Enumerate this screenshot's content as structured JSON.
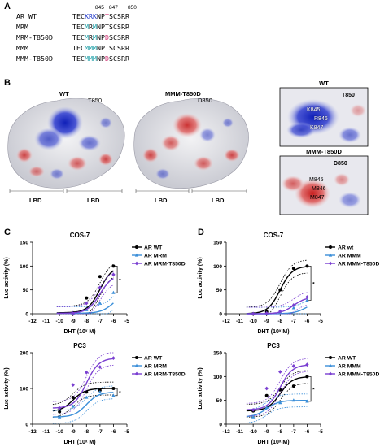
{
  "panels": {
    "A": "A",
    "B": "B",
    "C": "C",
    "D": "D"
  },
  "sequence": {
    "positions": [
      "845",
      "847",
      "850"
    ],
    "rows": [
      {
        "name": "AR WT",
        "pre": "TEC",
        "mid": [
          [
            "K",
            "blue"
          ],
          [
            "R",
            "blue"
          ],
          [
            "K",
            "blue"
          ]
        ],
        "np": "NP",
        "x": [
          "T",
          "pink"
        ],
        "post": "SCSRR"
      },
      {
        "name": "MRM",
        "pre": "TEC",
        "mid": [
          [
            "M",
            "cyan"
          ],
          [
            "R",
            "black"
          ],
          [
            "M",
            "cyan"
          ]
        ],
        "np": "NP",
        "x": [
          "T",
          "black"
        ],
        "post": "SCSRR"
      },
      {
        "name": "MRM-T850D",
        "pre": "TEC",
        "mid": [
          [
            "M",
            "cyan"
          ],
          [
            "R",
            "black"
          ],
          [
            "M",
            "cyan"
          ]
        ],
        "np": "NP",
        "x": [
          "D",
          "pink"
        ],
        "post": "SCSRR"
      },
      {
        "name": "MMM",
        "pre": "TEC",
        "mid": [
          [
            "M",
            "cyan"
          ],
          [
            "M",
            "cyan"
          ],
          [
            "M",
            "cyan"
          ]
        ],
        "np": "NP",
        "x": [
          "T",
          "black"
        ],
        "post": "SCSRR"
      },
      {
        "name": "MMM-T850D",
        "pre": "TEC",
        "mid": [
          [
            "M",
            "cyan"
          ],
          [
            "M",
            "cyan"
          ],
          [
            "M",
            "cyan"
          ]
        ],
        "np": "NP",
        "x": [
          "D",
          "pink"
        ],
        "post": "SCSRR"
      }
    ]
  },
  "structures": {
    "left": {
      "title": "WT",
      "site": "T850",
      "lbd_left": "LBD",
      "lbd_right": "LBD"
    },
    "right": {
      "title": "MMM-T850D",
      "site": "D850",
      "lbd_left": "LBD",
      "lbd_right": "LBD"
    },
    "zoom_top": {
      "title": "WT",
      "site": "T850",
      "res1": "K845",
      "res2": "R846",
      "res3": "K847"
    },
    "zoom_bottom": {
      "title": "MMM-T850D",
      "site": "D850",
      "res1": "M845",
      "res2": "M846",
      "res3": "M847"
    }
  },
  "colors": {
    "wt": "#000000",
    "mut1": "#3b8fd9",
    "mut2": "#7a3fd1",
    "surface_blue": "#2b35c8",
    "surface_red": "#d43a3a"
  },
  "chart_data": [
    {
      "id": "C-top",
      "type": "line",
      "title": "COS-7",
      "xlabel": "DHT (10ˣ M)",
      "ylabel": "Luc activity (%)",
      "xlim": [
        -12,
        -5
      ],
      "ylim": [
        0,
        150
      ],
      "xticks": [
        -12,
        -11,
        -10,
        -9,
        -8,
        -7,
        -6,
        -5
      ],
      "yticks": [
        0,
        50,
        100,
        150
      ],
      "significance": "*",
      "legend": [
        "AR WT",
        "AR MRM",
        "AR MRM-T850D"
      ],
      "series": [
        {
          "name": "AR WT",
          "x": [
            -9,
            -8,
            -7,
            -6
          ],
          "y": [
            2,
            33,
            78,
            100
          ]
        },
        {
          "name": "AR MRM",
          "x": [
            -9,
            -8,
            -7,
            -6
          ],
          "y": [
            1,
            8,
            22,
            44
          ]
        },
        {
          "name": "AR MRM-T850D",
          "x": [
            -9,
            -8,
            -7,
            -6
          ],
          "y": [
            1,
            22,
            55,
            82
          ]
        }
      ]
    },
    {
      "id": "D-top",
      "type": "line",
      "title": "COS-7",
      "xlabel": "DHT (10ˣ M)",
      "ylabel": "Luc activity (%)",
      "xlim": [
        -12,
        -5
      ],
      "ylim": [
        0,
        150
      ],
      "xticks": [
        -12,
        -11,
        -10,
        -9,
        -8,
        -7,
        -6,
        -5
      ],
      "yticks": [
        0,
        50,
        100,
        150
      ],
      "significance": "*",
      "legend": [
        "AR wt",
        "AR MMM",
        "AR MMM-T850D"
      ],
      "series": [
        {
          "name": "AR wt",
          "x": [
            -10,
            -9,
            -8,
            -7,
            -6
          ],
          "y": [
            0,
            4,
            50,
            95,
            100
          ]
        },
        {
          "name": "AR MMM",
          "x": [
            -10,
            -9,
            -8,
            -7,
            -6
          ],
          "y": [
            0,
            1,
            3,
            12,
            28
          ]
        },
        {
          "name": "AR MMM-T850D",
          "x": [
            -10,
            -9,
            -8,
            -7,
            -6
          ],
          "y": [
            0,
            1,
            5,
            18,
            35
          ]
        }
      ]
    },
    {
      "id": "C-bottom",
      "type": "line",
      "title": "PC3",
      "xlabel": "DHT (10ˣ M)",
      "ylabel": "Luc activity (%)",
      "xlim": [
        -12,
        -5
      ],
      "ylim": [
        0,
        200
      ],
      "xticks": [
        -12,
        -11,
        -10,
        -9,
        -8,
        -7,
        -6,
        -5
      ],
      "yticks": [
        0,
        100,
        200
      ],
      "significance": "*",
      "legend": [
        "AR WT",
        "AR MRM",
        "AR MRM-T850D"
      ],
      "series": [
        {
          "name": "AR WT",
          "x": [
            -10,
            -9,
            -8,
            -7,
            -6
          ],
          "y": [
            35,
            75,
            90,
            95,
            100
          ]
        },
        {
          "name": "AR MRM",
          "x": [
            -10,
            -9,
            -8,
            -7,
            -6
          ],
          "y": [
            20,
            50,
            75,
            90,
            80
          ]
        },
        {
          "name": "AR MRM-T850D",
          "x": [
            -10,
            -9,
            -8,
            -7,
            -6
          ],
          "y": [
            45,
            110,
            145,
            160,
            185
          ]
        }
      ]
    },
    {
      "id": "D-bottom",
      "type": "line",
      "title": "PC3",
      "xlabel": "DHT (10ˣ M)",
      "ylabel": "Luc activity (%)",
      "xlim": [
        -12,
        -5
      ],
      "ylim": [
        0,
        150
      ],
      "xticks": [
        -12,
        -11,
        -10,
        -9,
        -8,
        -7,
        -6,
        -5
      ],
      "yticks": [
        0,
        50,
        100,
        150
      ],
      "significance": "*",
      "legend": [
        "AR WT",
        "AR MMM",
        "AR MMM-T850D"
      ],
      "series": [
        {
          "name": "AR WT",
          "x": [
            -10,
            -9,
            -8,
            -7,
            -6
          ],
          "y": [
            28,
            60,
            72,
            80,
            100
          ]
        },
        {
          "name": "AR MMM",
          "x": [
            -10,
            -9,
            -8,
            -7,
            -6
          ],
          "y": [
            15,
            35,
            45,
            50,
            48
          ]
        },
        {
          "name": "AR MMM-T850D",
          "x": [
            -10,
            -9,
            -8,
            -7,
            -6
          ],
          "y": [
            30,
            75,
            110,
            122,
            125
          ]
        }
      ]
    }
  ]
}
